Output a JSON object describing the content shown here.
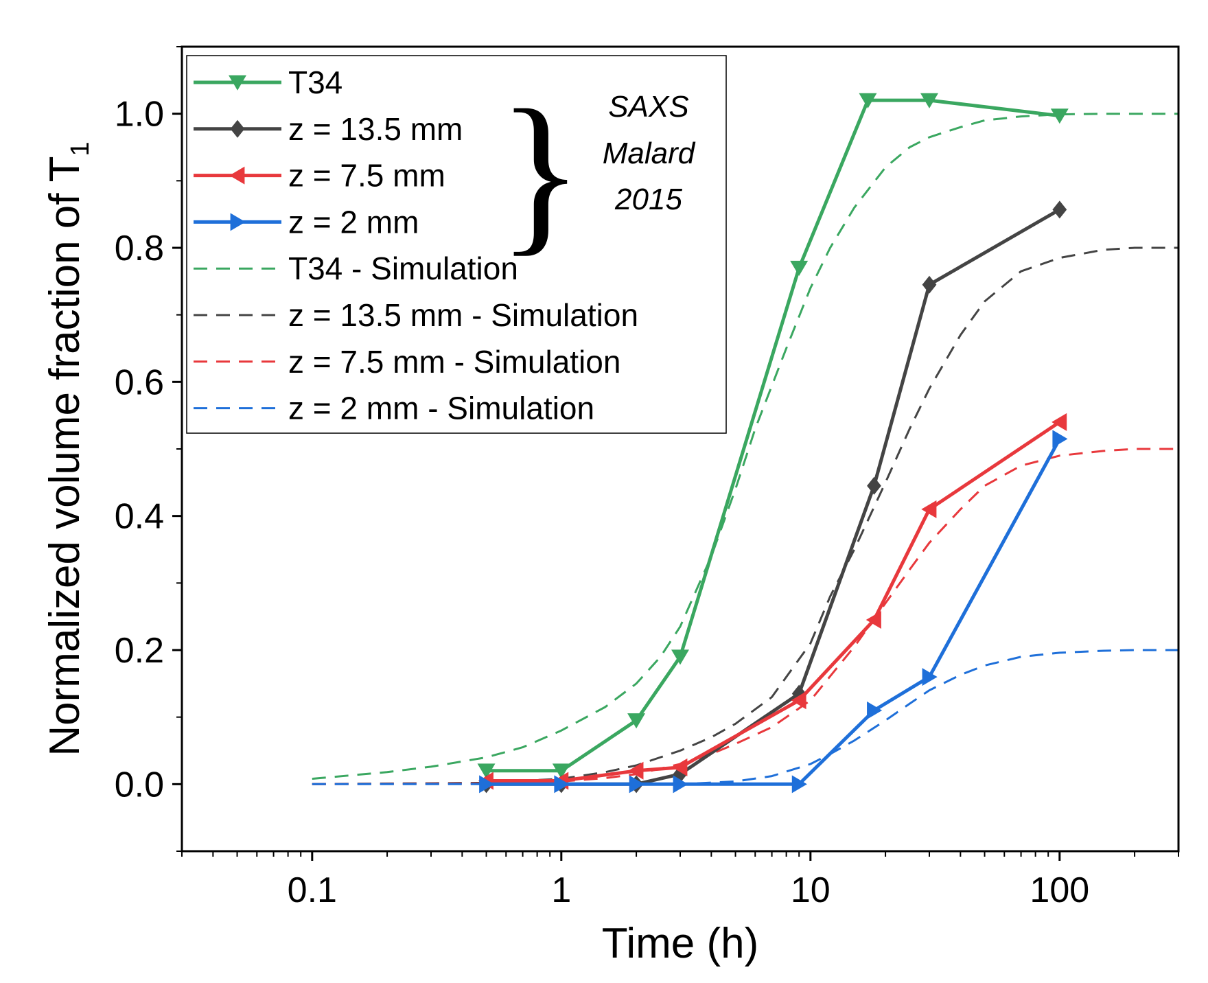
{
  "chart_data": {
    "type": "line",
    "xscale": "log",
    "xlim": [
      0.03,
      300
    ],
    "ylim": [
      -0.1,
      1.1
    ],
    "xlabel": "Time (h)",
    "ylabel": "Normalized volume fraction of T",
    "ylabel_subscript": "1",
    "xticks": [
      {
        "value": 0.1,
        "label": "0.1"
      },
      {
        "value": 1,
        "label": "1"
      },
      {
        "value": 10,
        "label": "10"
      },
      {
        "value": 100,
        "label": "100"
      }
    ],
    "yticks": [
      {
        "value": 0.0,
        "label": "0.0"
      },
      {
        "value": 0.2,
        "label": "0.2"
      },
      {
        "value": 0.4,
        "label": "0.4"
      },
      {
        "value": 0.6,
        "label": "0.6"
      },
      {
        "value": 0.8,
        "label": "0.8"
      },
      {
        "value": 1.0,
        "label": "1.0"
      }
    ],
    "legend_position": "top-left",
    "annotation": {
      "lines": [
        "SAXS",
        "Malard",
        "2015"
      ],
      "brace": "}"
    },
    "series": [
      {
        "id": "t34",
        "name": "T34",
        "style": "solid",
        "marker": "triangle-down",
        "color": "#3aa760",
        "x": [
          0.5,
          1,
          2,
          3,
          9,
          17,
          30,
          100
        ],
        "y": [
          0.02,
          0.02,
          0.095,
          0.19,
          0.77,
          1.02,
          1.02,
          0.997
        ]
      },
      {
        "id": "z135",
        "name": "z = 13.5 mm",
        "style": "solid",
        "marker": "diamond",
        "color": "#444444",
        "x": [
          0.5,
          1,
          2,
          3,
          9,
          18,
          30,
          100
        ],
        "y": [
          0.0,
          0.0,
          0.0,
          0.015,
          0.135,
          0.445,
          0.745,
          0.857
        ]
      },
      {
        "id": "z75",
        "name": "z = 7.5 mm",
        "style": "solid",
        "marker": "triangle-left",
        "color": "#e8383c",
        "x": [
          0.5,
          1,
          2,
          3,
          9,
          18,
          30,
          100
        ],
        "y": [
          0.005,
          0.005,
          0.02,
          0.025,
          0.125,
          0.245,
          0.41,
          0.54
        ]
      },
      {
        "id": "z2",
        "name": "z = 2 mm",
        "style": "solid",
        "marker": "triangle-right",
        "color": "#1e6fd9",
        "x": [
          0.5,
          1,
          2,
          3,
          9,
          18,
          30,
          100
        ],
        "y": [
          0.0,
          0.0,
          0.0,
          0.0,
          0.0,
          0.11,
          0.16,
          0.515
        ]
      },
      {
        "id": "t34sim",
        "name": "T34 - Simulation",
        "style": "dashed",
        "color": "#3aa760",
        "x": [
          0.1,
          0.2,
          0.3,
          0.5,
          0.7,
          1,
          1.5,
          2,
          2.5,
          3,
          4,
          5,
          6,
          8,
          10,
          12,
          15,
          20,
          25,
          30,
          40,
          50,
          70,
          100,
          150,
          200,
          300
        ],
        "y": [
          0.008,
          0.018,
          0.026,
          0.04,
          0.055,
          0.08,
          0.115,
          0.15,
          0.19,
          0.235,
          0.34,
          0.44,
          0.53,
          0.65,
          0.74,
          0.8,
          0.86,
          0.92,
          0.95,
          0.965,
          0.98,
          0.99,
          0.996,
          0.999,
          1.0,
          1.0,
          1.0
        ]
      },
      {
        "id": "z135sim",
        "name": "z = 13.5 mm - Simulation",
        "style": "dashed",
        "color": "#444444",
        "x": [
          0.1,
          0.5,
          1,
          1.5,
          2,
          3,
          4,
          5,
          7,
          10,
          12,
          15,
          20,
          25,
          30,
          40,
          50,
          70,
          100,
          150,
          200,
          300
        ],
        "y": [
          0.0,
          0.002,
          0.008,
          0.018,
          0.028,
          0.05,
          0.07,
          0.09,
          0.13,
          0.21,
          0.28,
          0.35,
          0.45,
          0.53,
          0.59,
          0.67,
          0.72,
          0.765,
          0.785,
          0.797,
          0.8,
          0.8
        ]
      },
      {
        "id": "z75sim",
        "name": "z = 7.5 mm - Simulation",
        "style": "dashed",
        "color": "#e8383c",
        "x": [
          0.1,
          0.5,
          1,
          1.5,
          2,
          3,
          4,
          5,
          7,
          10,
          15,
          20,
          25,
          30,
          40,
          50,
          70,
          100,
          150,
          200,
          300
        ],
        "y": [
          0.0,
          0.001,
          0.004,
          0.009,
          0.015,
          0.03,
          0.045,
          0.06,
          0.085,
          0.125,
          0.205,
          0.27,
          0.32,
          0.36,
          0.41,
          0.445,
          0.475,
          0.49,
          0.497,
          0.5,
          0.5
        ]
      },
      {
        "id": "z2sim",
        "name": "z = 2 mm - Simulation",
        "style": "dashed",
        "color": "#1e6fd9",
        "x": [
          0.1,
          1,
          3,
          5,
          7,
          10,
          12,
          15,
          20,
          25,
          30,
          40,
          50,
          70,
          100,
          150,
          200,
          300
        ],
        "y": [
          0.0,
          0.0,
          0.0,
          0.004,
          0.012,
          0.03,
          0.045,
          0.065,
          0.095,
          0.12,
          0.14,
          0.163,
          0.177,
          0.19,
          0.196,
          0.199,
          0.2,
          0.2
        ]
      }
    ]
  }
}
